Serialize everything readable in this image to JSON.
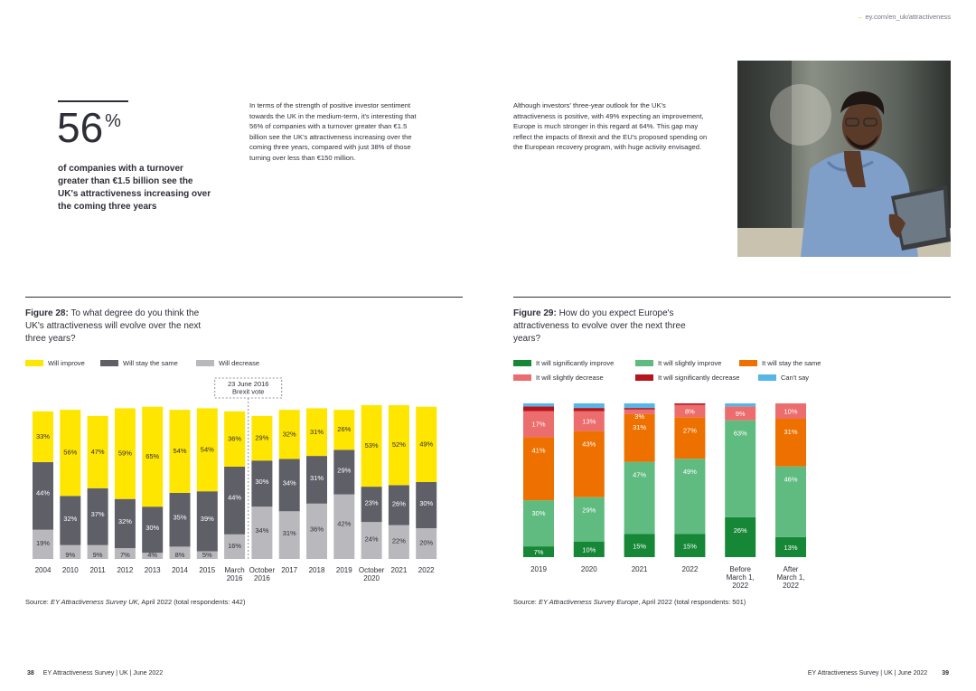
{
  "header": {
    "url": "ey.com/en_uk/attractiveness"
  },
  "stat": {
    "value": "56",
    "unit": "%",
    "caption": "of companies with a turnover greater than €1.5 billion see the UK's attractiveness increasing over the coming three years"
  },
  "paragraphs": {
    "left": "In terms of the strength of positive investor sentiment towards the UK in the medium-term, it's interesting that 56% of companies with a turnover greater than €1.5 billion see the UK's attractiveness increasing over the coming three years, compared with just 38% of those turning over less than €150 million.",
    "right": "Although investors' three-year outlook for the UK's attractiveness is positive, with 49% expecting an improvement, Europe is much stronger in this regard at 64%. This gap may reflect the impacts of Brexit and the EU's proposed spending on the European recovery program, with huge activity envisaged."
  },
  "colors": {
    "improve": "#ffe600",
    "same": "#5f5f68",
    "decrease": "#b9b9bd",
    "sig_improve": "#168736",
    "slight_improve": "#5fbb80",
    "stay_same": "#ee7100",
    "slight_decrease": "#ec6d6d",
    "sig_decrease": "#b7151d",
    "cant_say": "#56b6e8"
  },
  "figure28": {
    "label": "Figure 28:",
    "question": "To what degree do you think the UK's attractiveness will evolve over the next three years?",
    "source_prefix": "Source: ",
    "source_italic": "EY Attractiveness Survey UK",
    "source_suffix": ", April 2022 (total respondents: 442)"
  },
  "figure29": {
    "label": "Figure 29:",
    "question": "How do you expect Europe's attractiveness to evolve over the next three years?",
    "source_prefix": "Source: ",
    "source_italic": "EY Attractiveness Survey Europe",
    "source_suffix": ", April 2022 (total respondents: 501)"
  },
  "chart_data": [
    {
      "type": "bar",
      "stacked": true,
      "title": "Figure 28: To what degree do you think the UK's attractiveness will evolve over the next three years?",
      "annotation": [
        "23 June 2016",
        "Brexit vote"
      ],
      "categories": [
        [
          "2004"
        ],
        [
          "2010"
        ],
        [
          "2011"
        ],
        [
          "2012"
        ],
        [
          "2013"
        ],
        [
          "2014"
        ],
        [
          "2015"
        ],
        [
          "March",
          "2016"
        ],
        [
          "October",
          "2016"
        ],
        [
          "2017"
        ],
        [
          "2018"
        ],
        [
          "2019"
        ],
        [
          "October",
          "2020"
        ],
        [
          "2021"
        ],
        [
          "2022"
        ]
      ],
      "series": [
        {
          "name": "Will decrease",
          "color_key": "decrease",
          "values": [
            19,
            9,
            9,
            7,
            4,
            8,
            5,
            16,
            34,
            31,
            36,
            42,
            24,
            22,
            20
          ]
        },
        {
          "name": "Will stay the same",
          "color_key": "same",
          "values": [
            44,
            32,
            37,
            32,
            30,
            35,
            39,
            44,
            30,
            34,
            31,
            29,
            23,
            26,
            30
          ]
        },
        {
          "name": "Will improve",
          "color_key": "improve",
          "values": [
            33,
            56,
            47,
            59,
            65,
            54,
            54,
            36,
            29,
            32,
            31,
            26,
            53,
            52,
            49
          ]
        }
      ],
      "legend": [
        "Will improve",
        "Will stay the same",
        "Will decrease"
      ],
      "ylim": [
        0,
        100
      ]
    },
    {
      "type": "bar",
      "stacked": true,
      "title": "Figure 29: How do you expect Europe's attractiveness to evolve over the next three years?",
      "categories": [
        [
          "2019"
        ],
        [
          "2020"
        ],
        [
          "2021"
        ],
        [
          "2022"
        ],
        [
          "Before",
          "March 1,",
          "2022"
        ],
        [
          "After",
          "March 1,",
          "2022"
        ]
      ],
      "series": [
        {
          "name": "It will significantly improve",
          "color_key": "sig_improve",
          "values": [
            7,
            10,
            15,
            15,
            26,
            13
          ],
          "labels": [
            "7%",
            "10%",
            "15%",
            "15%",
            "26%",
            "13%"
          ]
        },
        {
          "name": "It will slightly improve",
          "color_key": "slight_improve",
          "values": [
            30,
            29,
            47,
            49,
            63,
            46
          ],
          "labels": [
            "30%",
            "29%",
            "47%",
            "49%",
            "63%",
            "46%"
          ]
        },
        {
          "name": "It will stay the same",
          "color_key": "stay_same",
          "values": [
            41,
            43,
            31,
            27,
            0,
            31
          ],
          "labels": [
            "41%",
            "43%",
            "31%",
            "27%",
            "",
            "31%"
          ]
        },
        {
          "name": "It will slightly decrease",
          "color_key": "slight_decrease",
          "values": [
            17,
            13,
            3,
            8,
            9,
            10
          ],
          "labels": [
            "17%",
            "13%",
            "3%",
            "8%",
            "9%",
            "10%"
          ]
        },
        {
          "name": "It will significantly decrease",
          "color_key": "sig_decrease",
          "values": [
            3,
            2,
            1,
            1,
            0,
            0
          ],
          "labels": [
            "",
            "",
            "",
            "",
            "",
            ""
          ]
        },
        {
          "name": "Can't say",
          "color_key": "cant_say",
          "values": [
            2,
            3,
            3,
            0,
            2,
            0
          ],
          "labels": [
            "",
            "",
            "",
            "",
            "",
            ""
          ]
        }
      ],
      "legend": [
        "It will significantly improve",
        "It will slightly improve",
        "It will stay the same",
        "It will slightly decrease",
        "It will significantly decrease",
        "Can't say"
      ],
      "ylim": [
        0,
        100
      ]
    }
  ],
  "footer": {
    "left_page": "38",
    "left_text": "EY Attractiveness Survey | UK | June 2022",
    "right_text": "EY Attractiveness Survey | UK | June 2022",
    "right_page": "39"
  }
}
